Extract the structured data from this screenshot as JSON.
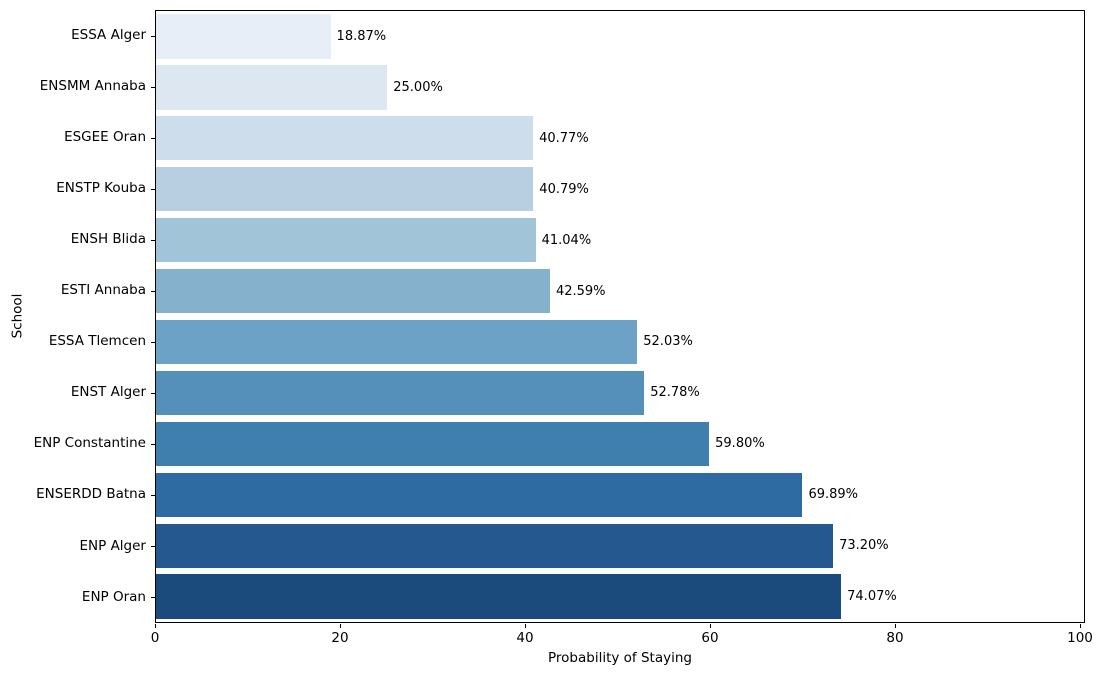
{
  "figure": {
    "background": "#ffffff",
    "text_color": "#000000",
    "axis_line_color": "#000000"
  },
  "chart_data": {
    "type": "bar",
    "orientation": "horizontal",
    "title": "",
    "xlabel": "Probability of Staying",
    "ylabel": "School",
    "xlim": [
      0,
      100
    ],
    "xticks": [
      0,
      20,
      40,
      60,
      80,
      100
    ],
    "grid": false,
    "legend": false,
    "categories": [
      "ESSA Alger",
      "ENSMM Annaba",
      "ESGEE Oran",
      "ENSTP Kouba",
      "ENSH Blida",
      "ESTI Annaba",
      "ESSA Tlemcen",
      "ENST Alger",
      "ENP Constantine",
      "ENSERDD Batna",
      "ENP Alger",
      "ENP Oran"
    ],
    "values": [
      18.87,
      25.0,
      40.77,
      40.79,
      41.04,
      42.59,
      52.03,
      52.78,
      59.8,
      69.89,
      73.2,
      74.07
    ],
    "value_labels": [
      "18.87%",
      "25.00%",
      "40.77%",
      "40.79%",
      "41.04%",
      "42.59%",
      "52.03%",
      "52.78%",
      "59.80%",
      "69.89%",
      "73.20%",
      "74.07%"
    ],
    "bar_colors": [
      "#e7eef8",
      "#dce7f2",
      "#cdddec",
      "#b7cfe1",
      "#a2c4d9",
      "#86b1cd",
      "#6ca2c6",
      "#5590ba",
      "#3f7fae",
      "#2e6ba3",
      "#24588f",
      "#1b4a7c"
    ],
    "annotation_color": "#000000"
  }
}
